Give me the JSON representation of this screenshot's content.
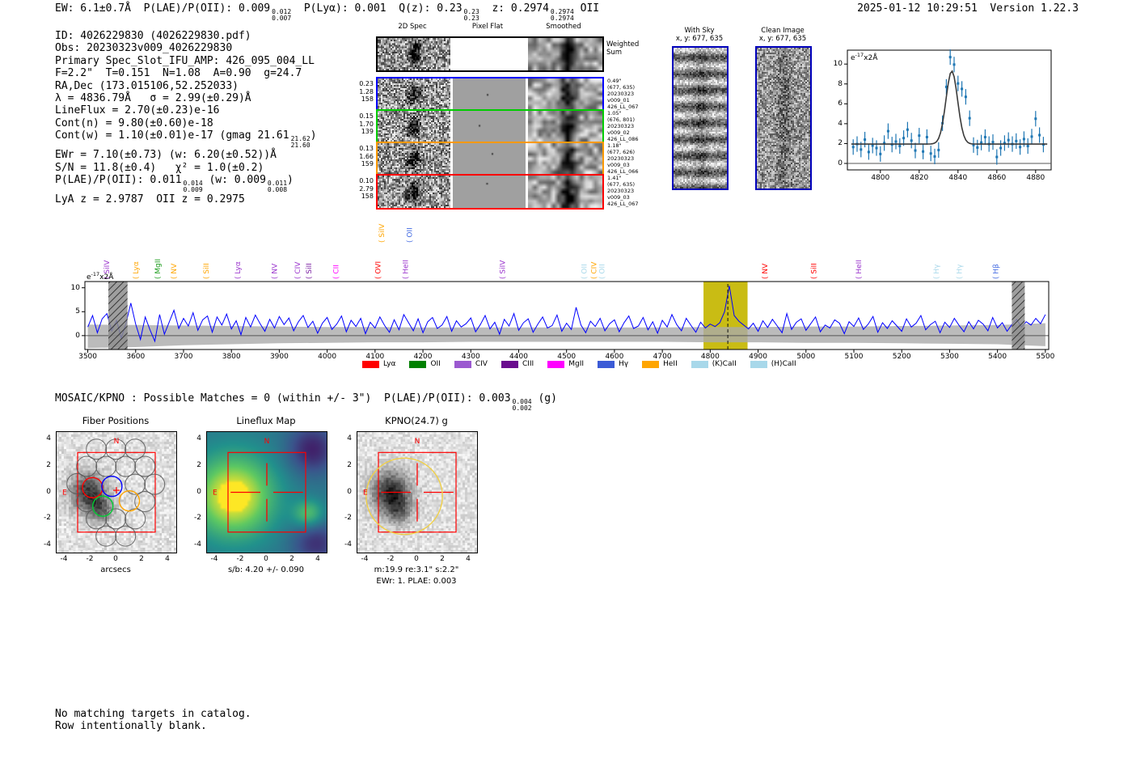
{
  "header": {
    "left_segments": [
      {
        "t": "EW: 6.1±0.7Å  P(LAE)/P(OII): 0.009"
      },
      {
        "stack": [
          "0.012",
          "0.007"
        ]
      },
      {
        "t": "  P(Lyα): 0.001  Q(z): 0.23"
      },
      {
        "stack": [
          "0.23",
          "0.23"
        ]
      },
      {
        "t": "  z: 0.2974"
      },
      {
        "stack": [
          "0.2974",
          "0.2974"
        ]
      },
      {
        "t": " OII"
      }
    ],
    "timestamp": "2025-01-12 10:29:51  Version 1.22.3"
  },
  "info_block": {
    "lines": [
      [
        {
          "t": "ID: 4026229830 (4026229830.pdf)"
        }
      ],
      [
        {
          "t": "Obs: 20230323v009_4026229830"
        }
      ],
      [
        {
          "t": "Primary Spec_Slot_IFU_AMP: 426_095_004_LL"
        }
      ],
      [
        {
          "t": "F=2.2\"  T=0.151  N=1.08  A=0.90  g=24.7"
        }
      ],
      [
        {
          "t": "RA,Dec (173.015106,52.252033)"
        }
      ],
      [
        {
          "t": "λ = 4836.79Å   σ = 2.99(±0.29)Å"
        }
      ],
      [
        {
          "t": "LineFlux = 2.70(±0.23)e-16"
        }
      ],
      [
        {
          "t": "Cont(n) = 9.80(±0.60)e-18"
        }
      ],
      [
        {
          "t": "Cont(w) = 1.10(±0.01)e-17 (gmag 21.61"
        },
        {
          "stack": [
            "21.62",
            "21.60"
          ]
        },
        {
          "t": ")"
        }
      ],
      [
        {
          "t": "EWr = 7.10(±0.73) (w: 6.20(±0.52))Å"
        }
      ],
      [
        {
          "t": "S/N = 11.8(±0.4)   χ² = 1.0(±0.2)"
        }
      ],
      [
        {
          "t": "P(LAE)/P(OII): 0.011"
        },
        {
          "stack": [
            "0.014",
            "0.009"
          ]
        },
        {
          "t": " (w: 0.009"
        },
        {
          "stack": [
            "0.011",
            "0.008"
          ]
        },
        {
          "t": ")"
        }
      ],
      [
        {
          "t": "LyA z = 2.9787  OII z = 0.2975"
        }
      ]
    ]
  },
  "spec2d": {
    "col_headers": [
      "2D Spec",
      "Pixel Flat",
      "Smoothed"
    ],
    "weighted_label_lines": [
      "Weighted",
      "Sum"
    ],
    "rows": [
      {
        "left": [
          "0.23",
          "1.28",
          "158"
        ],
        "right": [
          "0.49\"",
          "(677, 635)",
          "20230323",
          "v009_01",
          "426_LL_067"
        ],
        "color": "#0000ff"
      },
      {
        "left": [
          "0.15",
          "1.70",
          "139"
        ],
        "right": [
          "1.05\"",
          "(676, 801)",
          "20230323",
          "v009_02",
          "426_LL_086"
        ],
        "color": "#00cc00"
      },
      {
        "left": [
          "0.13",
          "1.66",
          "159"
        ],
        "right": [
          "1.18\"",
          "(677, 626)",
          "20230323",
          "v009_03",
          "426_LL_066"
        ],
        "color": "#ff9900"
      },
      {
        "left": [
          "0.10",
          "2.79",
          "158"
        ],
        "right": [
          "1.41\"",
          "(677, 635)",
          "20230323",
          "v009_03",
          "426_LL_067"
        ],
        "color": "#ff0000"
      }
    ]
  },
  "sky_panels": [
    {
      "title": "With Sky",
      "xy": "x, y: 677, 635"
    },
    {
      "title": "Clean Image",
      "xy": "x, y: 677, 635"
    }
  ],
  "mosaic_line_segments": [
    {
      "t": "MOSAIC/KPNO : Possible Matches = 0 (within +/- 3\")  P(LAE)/P(OII): 0.003"
    },
    {
      "stack": [
        "0.004",
        "0.002"
      ]
    },
    {
      "t": " (g)"
    }
  ],
  "footer_lines": [
    "No matching targets in catalog.",
    "Row intentionally blank."
  ],
  "cutouts": {
    "ticks": [
      -4,
      -2,
      0,
      2,
      4
    ],
    "compass_n": "N",
    "compass_e": "E",
    "panels": [
      {
        "title": "Fiber Positions",
        "captions": [
          "arcsecs"
        ]
      },
      {
        "title": "Lineflux Map",
        "captions": [
          "s/b: 4.20 +/- 0.090"
        ]
      },
      {
        "title": "KPNO(24.7) g",
        "captions": [
          "m:19.9  re:3.1\"  s:2.2\"",
          "EWr: 1. PLAE: 0.003"
        ]
      }
    ]
  },
  "colors": {
    "spectrum_line": "#0000ff",
    "inset_points": "#1f77b4",
    "fit_curve": "#3a3a3a",
    "highlight_band": "#c9bc14",
    "error_band": "#aaaaaa",
    "masked_band": "#8d8d8d",
    "frame": "#000000",
    "annotation_red": "#ff0000",
    "sky_border": "#0000bb",
    "fiber_red": "#ff0000",
    "fiber_blue": "#0000ff",
    "fiber_green": "#00cc33",
    "fiber_orange": "#ffa500",
    "kpno_ellipse": "#f0d048"
  },
  "chart_data": [
    {
      "type": "scatter",
      "title": "emission line fit inset",
      "ylabel_note": {
        "pre": "e",
        "sup": "-17",
        "post": "x2Å"
      },
      "x_start": 4786,
      "x_step": 2,
      "y": [
        1.65,
        1.95,
        1.4,
        2.4,
        1.15,
        1.8,
        1.55,
        0.95,
        2.05,
        3.25,
        1.9,
        2.2,
        1.75,
        2.55,
        3.4,
        2.3,
        1.3,
        2.8,
        1.2,
        2.65,
        1.0,
        0.7,
        1.35,
        4.05,
        7.7,
        10.7,
        9.95,
        8.05,
        7.5,
        6.7,
        4.55,
        1.85,
        1.6,
        2.1,
        2.65,
        1.95,
        2.15,
        0.65,
        1.55,
        2.05,
        2.35,
        1.95,
        2.25,
        1.65,
        2.45,
        1.75,
        2.7,
        4.5,
        2.85,
        1.9
      ],
      "yerr": 0.78,
      "fit": {
        "model": "gaussian",
        "center": 4836.8,
        "sigma": 3.0,
        "amplitude": 7.35,
        "baseline": 1.95
      },
      "xticks": [
        4800,
        4820,
        4840,
        4860,
        4880
      ],
      "yticks": [
        0,
        2,
        4,
        6,
        8,
        10
      ],
      "xlim": [
        4783,
        4888
      ],
      "ylim": [
        -0.65,
        11.4
      ]
    },
    {
      "type": "line",
      "title": "full 1D spectrum",
      "ylabel_note": {
        "pre": "e",
        "sup": "-17",
        "post": "x2Å"
      },
      "x_start": 3500,
      "x_step": 10,
      "y": [
        1.8,
        4.2,
        0.6,
        3.5,
        4.6,
        1.0,
        3.2,
        -0.5,
        2.6,
        6.8,
        2.4,
        -0.8,
        3.9,
        1.2,
        -1.2,
        4.4,
        0.3,
        2.8,
        5.3,
        1.5,
        3.6,
        2.0,
        4.8,
        1.1,
        3.3,
        4.1,
        0.7,
        3.9,
        2.2,
        4.5,
        1.4,
        3.1,
        0.2,
        3.8,
        1.8,
        4.3,
        2.5,
        0.9,
        3.4,
        1.6,
        4.0,
        2.3,
        3.7,
        1.0,
        2.9,
        4.2,
        1.7,
        3.0,
        0.5,
        2.6,
        3.8,
        1.3,
        2.4,
        4.1,
        0.8,
        3.2,
        1.9,
        3.6,
        0.4,
        2.8,
        1.6,
        3.9,
        2.1,
        0.7,
        3.3,
        1.2,
        4.4,
        2.7,
        1.0,
        3.5,
        0.6,
        2.9,
        3.8,
        1.5,
        2.2,
        4.0,
        0.9,
        3.1,
        1.8,
        2.5,
        3.7,
        0.8,
        2.3,
        4.2,
        1.4,
        2.8,
        0.3,
        3.4,
        2.0,
        4.6,
        1.1,
        2.7,
        3.5,
        0.7,
        2.4,
        3.9,
        1.6,
        2.1,
        4.3,
        0.9,
        2.6,
        1.3,
        5.9,
        2.2,
        0.6,
        3.0,
        1.9,
        3.6,
        1.0,
        2.5,
        3.3,
        0.8,
        2.7,
        4.1,
        1.5,
        2.0,
        3.8,
        1.2,
        2.9,
        0.5,
        3.2,
        1.8,
        4.4,
        2.3,
        1.0,
        3.6,
        2.1,
        0.7,
        2.8,
        1.6,
        2.4,
        1.9,
        2.7,
        5.0,
        10.4,
        4.2,
        3.0,
        2.2,
        1.4,
        2.6,
        0.9,
        3.1,
        1.7,
        3.4,
        2.0,
        0.6,
        4.6,
        1.3,
        2.8,
        3.5,
        1.1,
        2.5,
        3.9,
        0.8,
        2.2,
        1.6,
        3.3,
        2.6,
        0.4,
        2.9,
        1.9,
        3.7,
        1.3,
        2.4,
        4.0,
        0.7,
        2.7,
        1.5,
        3.1,
        2.0,
        0.9,
        3.5,
        1.8,
        2.6,
        4.2,
        1.2,
        2.3,
        3.0,
        0.6,
        2.8,
        1.7,
        3.6,
        2.1,
        0.8,
        2.9,
        1.4,
        3.2,
        2.4,
        1.0,
        3.8,
        1.6,
        2.7,
        0.9,
        2.3,
        3.4,
        1.8,
        2.9,
        2.2,
        3.6,
        2.5,
        4.4
      ],
      "err_x_start": 3500,
      "err_x_step": 100,
      "err_upper": [
        2.3,
        2.2,
        2.1,
        2.0,
        1.9,
        1.8,
        1.8,
        1.7,
        1.7,
        1.7,
        1.7,
        1.7,
        1.7,
        1.8,
        1.8,
        1.9,
        1.9,
        2.0,
        2.1,
        2.2,
        2.6
      ],
      "err_lower": [
        -2.6,
        -2.4,
        -2.0,
        -1.8,
        -1.6,
        -1.5,
        -1.4,
        -1.4,
        -1.3,
        -1.3,
        -1.3,
        -1.3,
        -1.3,
        -1.4,
        -1.4,
        -1.5,
        -1.5,
        -1.6,
        -1.7,
        -1.8,
        -2.2
      ],
      "xticks": [
        3500,
        3600,
        3700,
        3800,
        3900,
        4000,
        4100,
        4200,
        4300,
        4400,
        4500,
        4600,
        4700,
        4800,
        4900,
        5000,
        5100,
        5200,
        5300,
        5400,
        5500
      ],
      "yticks": [
        0,
        5,
        10
      ],
      "xlim": [
        3494,
        5507
      ],
      "ylim": [
        -2.9,
        11.3
      ],
      "line_wave": 4836.79,
      "highlight_band": [
        4786,
        4878
      ],
      "masked_bands": [
        [
          3543,
          3583
        ],
        [
          5430,
          5457
        ]
      ],
      "markers": [
        {
          "label": "SiIV",
          "wave": 3540,
          "color": "#9932cc",
          "tier": 1
        },
        {
          "label": "Lyα",
          "wave": 3600,
          "color": "#ffa500",
          "tier": 1
        },
        {
          "label": "MgII",
          "wave": 3646,
          "color": "#1e9e1e",
          "tier": 1
        },
        {
          "label": "NV",
          "wave": 3680,
          "color": "#ffa500",
          "tier": 1
        },
        {
          "label": "SiII",
          "wave": 3747,
          "color": "#ffa500",
          "tier": 1
        },
        {
          "label": "Lyα",
          "wave": 3813,
          "color": "#9932cc",
          "tier": 1
        },
        {
          "label": "NV",
          "wave": 3890,
          "color": "#9932cc",
          "tier": 1
        },
        {
          "label": "CIV",
          "wave": 3938,
          "color": "#9932cc",
          "tier": 1
        },
        {
          "label": "SiII",
          "wave": 3962,
          "color": "#7a1fa2",
          "tier": 1
        },
        {
          "label": "CII",
          "wave": 4018,
          "color": "#ff00ff",
          "tier": 1
        },
        {
          "label": "OVI",
          "wave": 4106,
          "color": "#ff0000",
          "tier": 1
        },
        {
          "label": "SiIV",
          "wave": 4114,
          "color": "#ffa500",
          "tier": 2
        },
        {
          "label": "HeII",
          "wave": 4164,
          "color": "#9932cc",
          "tier": 1
        },
        {
          "label": "OII",
          "wave": 4172,
          "color": "#4169e1",
          "tier": 2
        },
        {
          "label": "SiIV",
          "wave": 4366,
          "color": "#9932cc",
          "tier": 1
        },
        {
          "label": "OII",
          "wave": 4537,
          "color": "#a8d8ea",
          "tier": 1
        },
        {
          "label": "CIV",
          "wave": 4557,
          "color": "#ffa500",
          "tier": 1
        },
        {
          "label": "OII",
          "wave": 4574,
          "color": "#a8d8ea",
          "tier": 1
        },
        {
          "label": "NV",
          "wave": 4914,
          "color": "#ff0000",
          "tier": 1
        },
        {
          "label": "SiII",
          "wave": 5016,
          "color": "#ff0000",
          "tier": 1
        },
        {
          "label": "HeII",
          "wave": 5110,
          "color": "#9932cc",
          "tier": 1
        },
        {
          "label": "Hγ",
          "wave": 5272,
          "color": "#a8d8ea",
          "tier": 1
        },
        {
          "label": "Hγ",
          "wave": 5320,
          "color": "#a8d8ea",
          "tier": 1
        },
        {
          "label": "Hβ",
          "wave": 5396,
          "color": "#4169e1",
          "tier": 1
        }
      ],
      "legend": [
        {
          "label": "Lyα",
          "color": "#ff0000"
        },
        {
          "label": "OII",
          "color": "#008000"
        },
        {
          "label": "CIV",
          "color": "#9b59d0"
        },
        {
          "label": "CIII",
          "color": "#6a0d8e"
        },
        {
          "label": "MgII",
          "color": "#ff00ff"
        },
        {
          "label": "Hγ",
          "color": "#3b5bd6"
        },
        {
          "label": "HeII",
          "color": "#ffa500"
        },
        {
          "label": "(K)CaII",
          "color": "#a8d8ea"
        },
        {
          "label": "(H)CaII",
          "color": "#a8d8ea"
        }
      ]
    }
  ]
}
